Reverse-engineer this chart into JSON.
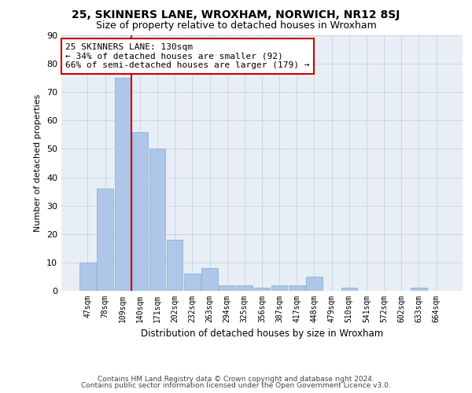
{
  "title": "25, SKINNERS LANE, WROXHAM, NORWICH, NR12 8SJ",
  "subtitle": "Size of property relative to detached houses in Wroxham",
  "xlabel": "Distribution of detached houses by size in Wroxham",
  "ylabel": "Number of detached properties",
  "bin_labels": [
    "47sqm",
    "78sqm",
    "109sqm",
    "140sqm",
    "171sqm",
    "202sqm",
    "232sqm",
    "263sqm",
    "294sqm",
    "325sqm",
    "356sqm",
    "387sqm",
    "417sqm",
    "448sqm",
    "479sqm",
    "510sqm",
    "541sqm",
    "572sqm",
    "602sqm",
    "633sqm",
    "664sqm"
  ],
  "bar_values": [
    10,
    36,
    75,
    56,
    50,
    18,
    6,
    8,
    2,
    2,
    1,
    2,
    2,
    5,
    0,
    1,
    0,
    0,
    0,
    1,
    0
  ],
  "bar_color": "#aec6e8",
  "bar_edge_color": "#8ab4d8",
  "grid_color": "#c8d8e8",
  "bg_color": "#e8eef5",
  "annotation_text": "25 SKINNERS LANE: 130sqm\n← 34% of detached houses are smaller (92)\n66% of semi-detached houses are larger (179) →",
  "annotation_box_color": "#ffffff",
  "annotation_box_edge": "#cc0000",
  "vline_color": "#cc0000",
  "footer_line1": "Contains HM Land Registry data © Crown copyright and database right 2024.",
  "footer_line2": "Contains public sector information licensed under the Open Government Licence v3.0.",
  "ylim": [
    0,
    90
  ],
  "yticks": [
    0,
    10,
    20,
    30,
    40,
    50,
    60,
    70,
    80,
    90
  ]
}
